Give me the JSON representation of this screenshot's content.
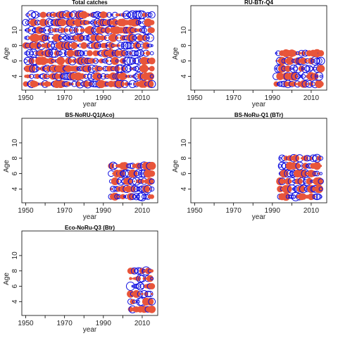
{
  "colors": {
    "positive": "#E8553A",
    "negative": "#1010E0",
    "frame": "#000000"
  },
  "chart_data": [
    {
      "type": "scatter",
      "title": "Total catches",
      "xlabel": "year",
      "ylabel": "Age",
      "x_ticks": [
        1950,
        1970,
        1990,
        2010
      ],
      "y_ticks": [
        4,
        6,
        8,
        10
      ],
      "xlim": [
        1948,
        2018
      ],
      "ylim": [
        2.2,
        13.2
      ],
      "years": [
        1950,
        2015
      ],
      "ages": [
        3,
        12
      ],
      "seed": 11
    },
    {
      "type": "scatter",
      "title": "RU-BTr-Q4",
      "xlabel": "year",
      "ylabel": "Age",
      "x_ticks": [
        1950,
        1970,
        1990,
        2010
      ],
      "y_ticks": [
        4,
        6,
        8,
        10
      ],
      "xlim": [
        1948,
        2018
      ],
      "ylim": [
        2.2,
        13.2
      ],
      "years": [
        1992,
        2015
      ],
      "ages": [
        3,
        7
      ],
      "seed": 23
    },
    {
      "type": "scatter",
      "title": "BS-NoRU-Q1(Aco)",
      "xlabel": "year",
      "ylabel": "Age",
      "x_ticks": [
        1950,
        1970,
        1990,
        2010
      ],
      "y_ticks": [
        4,
        6,
        8,
        10
      ],
      "xlim": [
        1948,
        2018
      ],
      "ylim": [
        2.2,
        13.2
      ],
      "years": [
        1994,
        2015
      ],
      "ages": [
        3,
        7
      ],
      "seed": 37
    },
    {
      "type": "scatter",
      "title": "BS-NoRu-Q1 (BTr)",
      "xlabel": "year",
      "ylabel": "Age",
      "x_ticks": [
        1950,
        1970,
        1990,
        2010
      ],
      "y_ticks": [
        4,
        6,
        8,
        10
      ],
      "xlim": [
        1948,
        2018
      ],
      "ylim": [
        2.2,
        13.2
      ],
      "years": [
        1994,
        2015
      ],
      "ages": [
        3,
        8
      ],
      "seed": 41
    },
    {
      "type": "scatter",
      "title": "Eco-NoRu-Q3 (Btr)",
      "xlabel": "year",
      "ylabel": "Age",
      "x_ticks": [
        1950,
        1970,
        1990,
        2010
      ],
      "y_ticks": [
        4,
        6,
        8,
        10
      ],
      "xlim": [
        1948,
        2018
      ],
      "ylim": [
        2.2,
        13.2
      ],
      "years": [
        2004,
        2015
      ],
      "ages": [
        3,
        8
      ],
      "seed": 53
    }
  ]
}
